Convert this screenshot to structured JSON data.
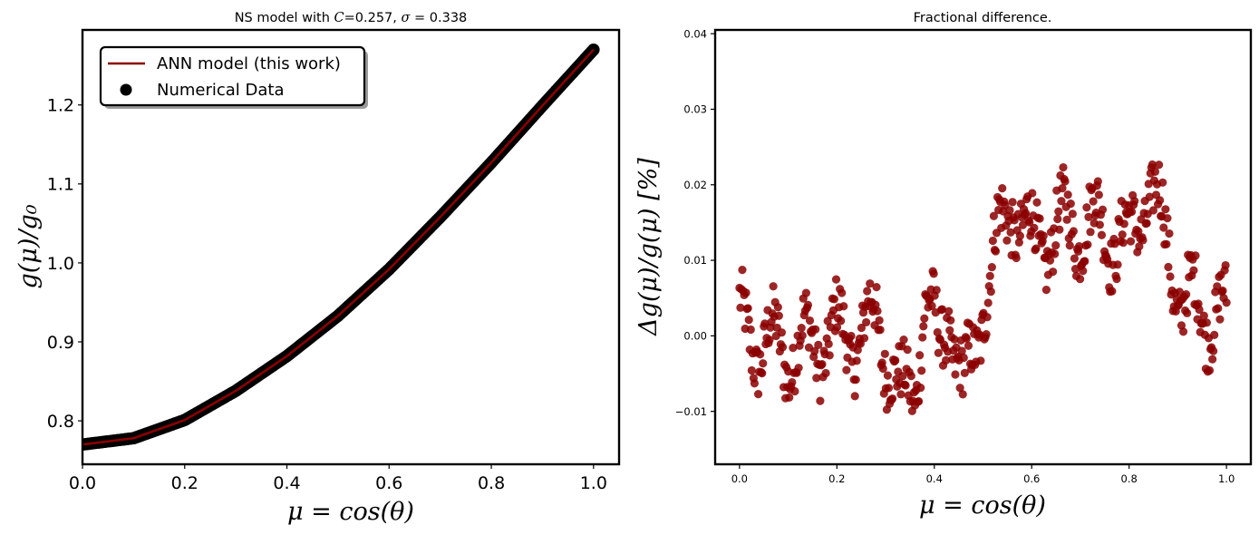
{
  "chart_data": [
    {
      "type": "scatter",
      "title": "NS model with C=0.257, σ = 0.338",
      "title_parts": {
        "prefix": "NS model with ",
        "c_sym": "C",
        "c_val": "=0.257, ",
        "sigma_sym": "σ",
        "sigma_val": " = 0.338"
      },
      "xlabel": "μ = cos(θ)",
      "ylabel": "g(μ)/g₀",
      "xlim": [
        0.0,
        1.05
      ],
      "ylim": [
        0.745,
        1.295
      ],
      "xticks": [
        0.0,
        0.2,
        0.4,
        0.6,
        0.8,
        1.0
      ],
      "xtick_labels": [
        "0.0",
        "0.2",
        "0.4",
        "0.6",
        "0.8",
        "1.0"
      ],
      "yticks": [
        0.8,
        0.9,
        1.0,
        1.1,
        1.2
      ],
      "ytick_labels": [
        "0.8",
        "0.9",
        "1.0",
        "1.1",
        "1.2"
      ],
      "grid": false,
      "legend_position": "top-left",
      "series": [
        {
          "name": "ANN model (this work)",
          "kind": "line",
          "color": "#8b0000"
        },
        {
          "name": "Numerical Data",
          "kind": "scatter",
          "color": "#000000"
        }
      ],
      "curve": {
        "x": [
          0.0,
          0.1,
          0.2,
          0.3,
          0.4,
          0.5,
          0.6,
          0.7,
          0.8,
          0.9,
          1.0
        ],
        "y": [
          0.77,
          0.778,
          0.801,
          0.838,
          0.882,
          0.933,
          0.992,
          1.058,
          1.127,
          1.199,
          1.27
        ]
      }
    },
    {
      "type": "scatter",
      "title": "Fractional difference.",
      "xlabel": "μ = cos(θ)",
      "ylabel": "Δg(μ)/g(μ) [%]",
      "xlim": [
        -0.05,
        1.05
      ],
      "ylim": [
        -0.017,
        0.0405
      ],
      "xticks": [
        0.0,
        0.2,
        0.4,
        0.6,
        0.8,
        1.0
      ],
      "xtick_labels": [
        "0.0",
        "0.2",
        "0.4",
        "0.6",
        "0.8",
        "1.0"
      ],
      "yticks": [
        -0.01,
        0.0,
        0.01,
        0.02,
        0.03,
        0.04
      ],
      "ytick_labels": [
        "−0.01",
        "0.00",
        "0.01",
        "0.02",
        "0.03",
        "0.04"
      ],
      "grid": false,
      "color": "#8b0000",
      "trend": {
        "x": [
          0.0,
          0.05,
          0.1,
          0.15,
          0.2,
          0.25,
          0.28,
          0.31,
          0.33,
          0.36,
          0.38,
          0.41,
          0.43,
          0.46,
          0.48,
          0.5,
          0.53,
          0.56,
          0.6,
          0.65,
          0.7,
          0.75,
          0.8,
          0.84,
          0.88,
          0.91,
          0.94,
          0.97,
          1.0
        ],
        "y": [
          0.001,
          -0.001,
          -0.002,
          -0.001,
          0.0,
          0.0,
          0.002,
          -0.003,
          -0.009,
          -0.006,
          0.005,
          -0.002,
          0.004,
          -0.008,
          -0.003,
          0.005,
          0.012,
          0.018,
          0.012,
          0.014,
          0.015,
          0.014,
          0.012,
          0.02,
          0.012,
          0.004,
          0.004,
          0.003,
          0.002
        ]
      },
      "spread": 0.0048,
      "points": 520
    }
  ]
}
